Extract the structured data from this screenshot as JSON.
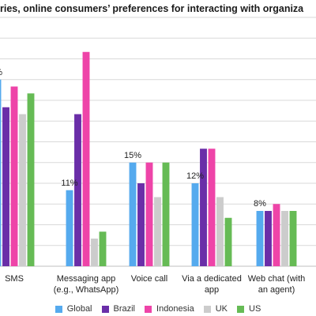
{
  "title": "ries, online consumers’ preferences for interacting with organiza",
  "chart_data": {
    "type": "bar",
    "categories": [
      [
        "SMS"
      ],
      [
        "Messaging app",
        "(e.g., WhatsApp)"
      ],
      [
        "Voice call"
      ],
      [
        "Via a dedicated",
        "app"
      ],
      [
        "Web chat (with",
        "an agent)"
      ]
    ],
    "series": [
      {
        "name": "Global",
        "color": "#55aaee",
        "values": [
          27,
          11,
          15,
          12,
          8
        ]
      },
      {
        "name": "Brazil",
        "color": "#6a2ea8",
        "values": [
          23,
          22,
          12,
          17,
          8
        ]
      },
      {
        "name": "Indonesia",
        "color": "#ee44a8",
        "values": [
          26,
          31,
          15,
          17,
          9
        ]
      },
      {
        "name": "UK",
        "color": "#cccccc",
        "values": [
          22,
          4,
          10,
          10,
          8
        ]
      },
      {
        "name": "US",
        "color": "#66bb55",
        "values": [
          25,
          5,
          15,
          7,
          8
        ]
      }
    ],
    "data_labels": [
      {
        "category": 0,
        "series": 0,
        "text": "%"
      },
      {
        "category": 1,
        "series": 0,
        "text": "11%"
      },
      {
        "category": 2,
        "series": 0,
        "text": "15%"
      },
      {
        "category": 3,
        "series": 0,
        "text": "12%"
      },
      {
        "category": 4,
        "series": 0,
        "text": "8%"
      }
    ],
    "ylim": [
      0,
      36
    ],
    "gridline_step": 3,
    "grid": true,
    "legend": "bottom"
  }
}
